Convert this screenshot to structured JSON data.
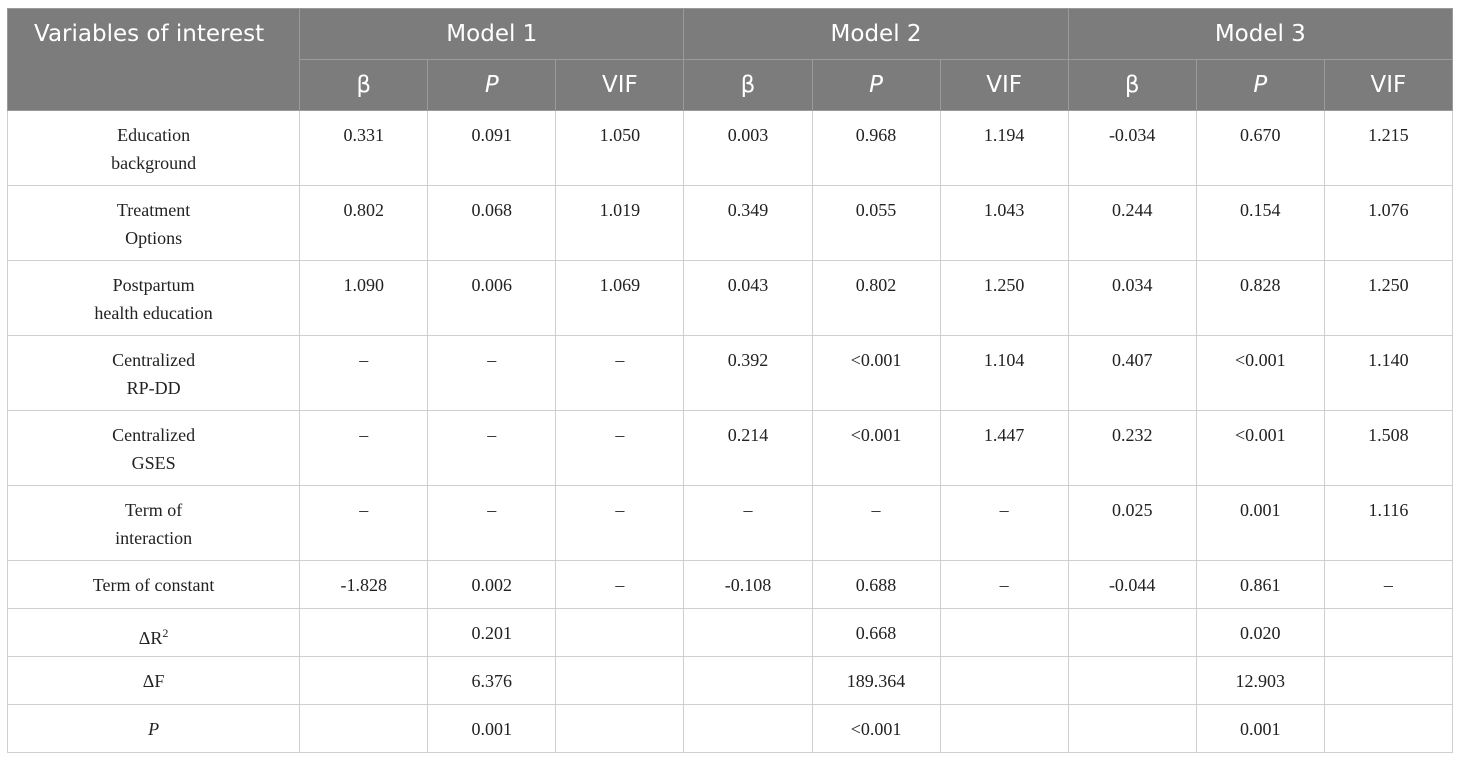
{
  "header": {
    "variables": "Variables of interest",
    "models": [
      "Model 1",
      "Model 2",
      "Model 3"
    ],
    "sub": [
      "β",
      "P",
      "VIF",
      "β",
      "P",
      "VIF",
      "β",
      "P",
      "VIF"
    ]
  },
  "rows": [
    {
      "label": [
        "Education",
        "background"
      ],
      "cells": [
        "0.331",
        "0.091",
        "1.050",
        "0.003",
        "0.968",
        "1.194",
        "-0.034",
        "0.670",
        "1.215"
      ]
    },
    {
      "label": [
        "Treatment",
        "Options"
      ],
      "cells": [
        "0.802",
        "0.068",
        "1.019",
        "0.349",
        "0.055",
        "1.043",
        "0.244",
        "0.154",
        "1.076"
      ]
    },
    {
      "label": [
        "Postpartum",
        "health education"
      ],
      "cells": [
        "1.090",
        "0.006",
        "1.069",
        "0.043",
        "0.802",
        "1.250",
        "0.034",
        "0.828",
        "1.250"
      ]
    },
    {
      "label": [
        "Centralized",
        "RP-DD"
      ],
      "cells": [
        "–",
        "–",
        "–",
        "0.392",
        "<0.001",
        "1.104",
        "0.407",
        "<0.001",
        "1.140"
      ]
    },
    {
      "label": [
        "Centralized",
        "GSES"
      ],
      "cells": [
        "–",
        "–",
        "–",
        "0.214",
        "<0.001",
        "1.447",
        "0.232",
        "<0.001",
        "1.508"
      ]
    },
    {
      "label": [
        "Term of",
        "interaction"
      ],
      "cells": [
        "–",
        "–",
        "–",
        "–",
        "–",
        "–",
        "0.025",
        "0.001",
        "1.116"
      ]
    },
    {
      "label": [
        "Term of constant"
      ],
      "cells": [
        "-1.828",
        "0.002",
        "–",
        "-0.108",
        "0.688",
        "–",
        "-0.044",
        "0.861",
        "–"
      ]
    }
  ],
  "summary": [
    {
      "label": "ΔR",
      "sup": "2",
      "values": [
        "0.201",
        "0.668",
        "0.020"
      ]
    },
    {
      "label": "ΔF",
      "values": [
        "6.376",
        "189.364",
        "12.903"
      ]
    },
    {
      "label": "P",
      "values": [
        "0.001",
        "<0.001",
        "0.001"
      ]
    }
  ]
}
